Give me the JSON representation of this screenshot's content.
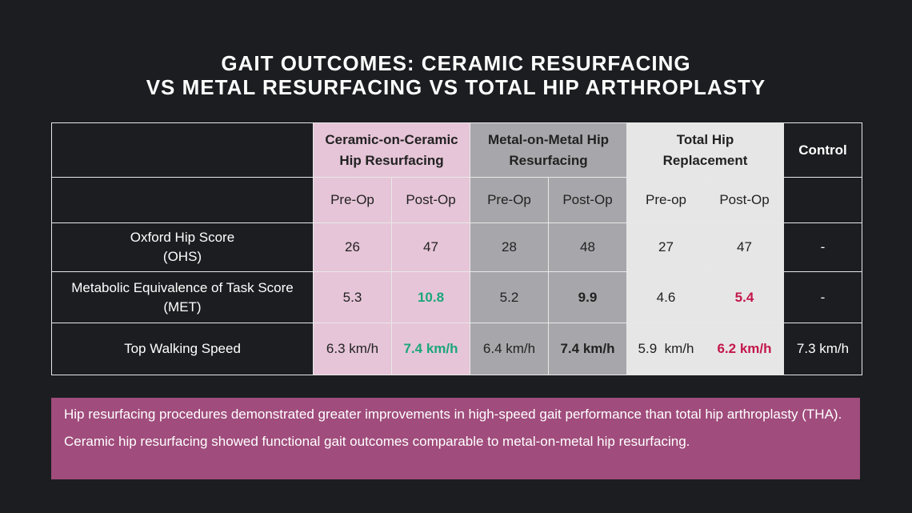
{
  "title": {
    "line1": "GAIT OUTCOMES: CERAMIC RESURFACING",
    "line2": "VS METAL RESURFACING VS TOTAL HIP ARTHROPLASTY"
  },
  "table": {
    "groups": [
      {
        "line1": "Ceramic-on-Ceramic",
        "line2": "Hip Resurfacing"
      },
      {
        "line1": "Metal-on-Metal Hip",
        "line2": "Resurfacing"
      },
      {
        "line1": "Total Hip",
        "line2": "Replacement"
      },
      {
        "line1": "Control",
        "line2": ""
      }
    ],
    "subheaders": [
      "Pre-Op",
      "Post-Op",
      "Pre-Op",
      "Post-Op",
      "Pre-op",
      "Post-Op"
    ],
    "rows": [
      {
        "label1": "Oxford Hip Score",
        "label2": "(OHS)",
        "values": [
          "26",
          "47",
          "28",
          "48",
          "27",
          "47",
          "-"
        ]
      },
      {
        "label1": "Metabolic Equivalence of Task Score",
        "label2": "(MET)",
        "values": [
          "5.3",
          "10.8",
          "5.2",
          "9.9",
          "4.6",
          "5.4",
          "-"
        ]
      },
      {
        "label1": "Top Walking Speed",
        "label2": "",
        "values": [
          "6.3 km/h",
          "7.4 km/h",
          "6.4 km/h",
          "7.4 km/h",
          "5.9  km/h",
          "6.2 km/h",
          "7.3 km/h"
        ]
      }
    ]
  },
  "colors": {
    "ceramic": "#e6c5d8",
    "metal": "#a7a7ab",
    "thr": "#e6e6e6",
    "highlight_good": "#1ba67a",
    "highlight_bad": "#c4174b",
    "note_bg": "#a04c7c"
  },
  "notes": [
    "Hip resurfacing procedures demonstrated greater improvements in high-speed gait performance than total hip arthroplasty (THA).",
    "Ceramic hip resurfacing showed functional gait outcomes comparable to metal-on-metal hip resurfacing."
  ]
}
